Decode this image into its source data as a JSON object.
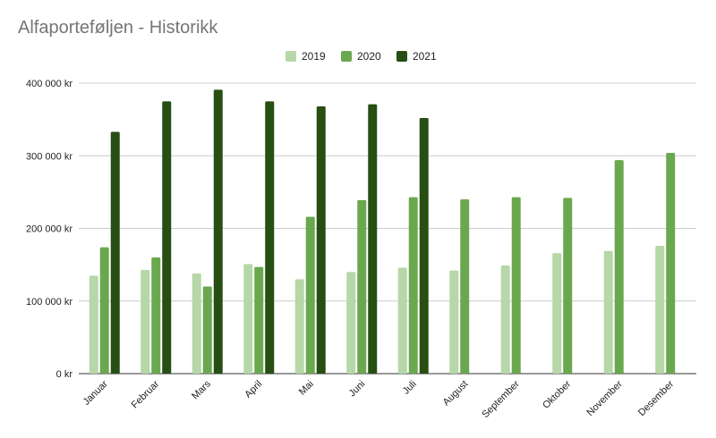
{
  "chart_data": {
    "type": "bar",
    "title": "Alfaporteføljen - Historikk",
    "xlabel": "",
    "ylabel": "",
    "ylim": [
      0,
      400000
    ],
    "yticks": [
      0,
      100000,
      200000,
      300000,
      400000
    ],
    "ytick_labels": [
      "0 kr",
      "100 000 kr",
      "200 000 kr",
      "300 000 kr",
      "400 000 kr"
    ],
    "grid": true,
    "legend_position": "top-center",
    "categories": [
      "Januar",
      "Februar",
      "Mars",
      "April",
      "Mai",
      "Juni",
      "Juli",
      "August",
      "September",
      "Oktober",
      "November",
      "Desember"
    ],
    "series": [
      {
        "name": "2019",
        "color": "#b6d7a8",
        "values": [
          135000,
          143000,
          138000,
          151000,
          130000,
          140000,
          146000,
          142000,
          149000,
          166000,
          169000,
          176000
        ]
      },
      {
        "name": "2020",
        "color": "#6aa84f",
        "values": [
          174000,
          160000,
          120000,
          147000,
          216000,
          239000,
          243000,
          240000,
          243000,
          242000,
          294000,
          304000
        ]
      },
      {
        "name": "2021",
        "color": "#274e13",
        "values": [
          333000,
          375000,
          391000,
          375000,
          368000,
          371000,
          352000,
          null,
          null,
          null,
          null,
          null
        ]
      }
    ]
  }
}
